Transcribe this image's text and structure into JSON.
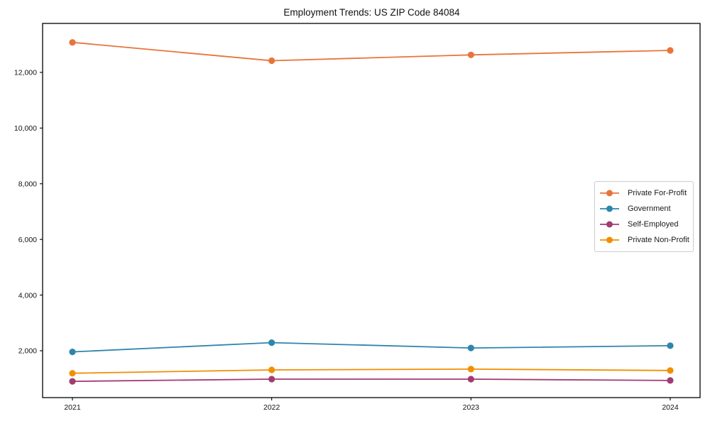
{
  "chart_data": {
    "type": "line",
    "title": "Employment Trends: US ZIP Code 84084",
    "x_categories": [
      "2021",
      "2022",
      "2023",
      "2024"
    ],
    "series": [
      {
        "name": "Private For-Profit",
        "color": "#E8743B",
        "values": [
          13080,
          12420,
          12630,
          12790
        ]
      },
      {
        "name": "Government",
        "color": "#2E86AB",
        "values": [
          1960,
          2290,
          2100,
          2180
        ]
      },
      {
        "name": "Self-Employed",
        "color": "#A23B72",
        "values": [
          900,
          980,
          980,
          930
        ]
      },
      {
        "name": "Private Non-Profit",
        "color": "#F18F01",
        "values": [
          1190,
          1310,
          1340,
          1290
        ]
      }
    ],
    "y_ticks": [
      2000,
      4000,
      6000,
      8000,
      10000,
      12000
    ],
    "y_tick_labels": [
      "2,000",
      "4,000",
      "6,000",
      "8,000",
      "10,000",
      "12,000"
    ],
    "ylim": [
      316,
      13760
    ],
    "xlabel": "",
    "ylabel": "",
    "grid": false,
    "legend_position": "middle-right",
    "axis_color": "#000000",
    "background_color": "#ffffff"
  }
}
